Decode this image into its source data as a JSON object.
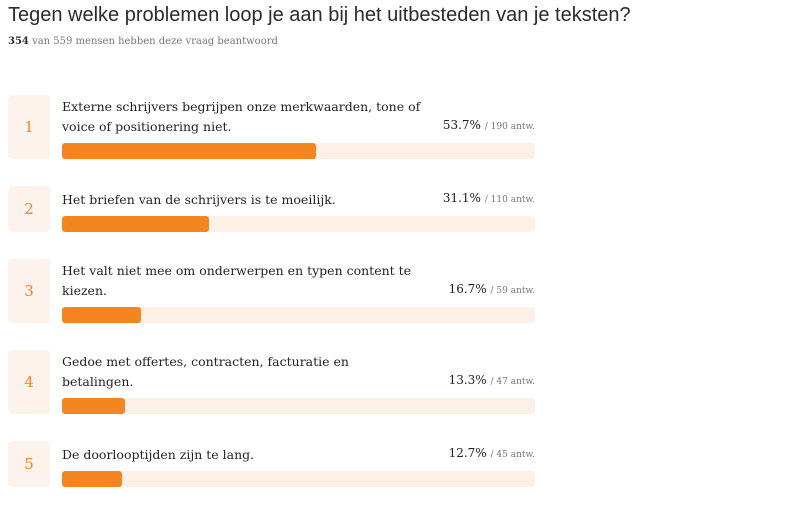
{
  "chart_data": {
    "type": "hbar",
    "title": "Tegen welke problemen loop je aan bij het uitbesteden van je teksten?",
    "respondents": "354",
    "subtitle": "van 559 mensen hebben deze vraag beantwoord",
    "ranks": [
      1,
      2,
      3,
      4,
      5
    ],
    "categories": [
      "Externe schrijvers begrijpen onze merkwaarden, tone of voice of positionering niet.",
      "Het briefen van de schrijvers is te moeilijk.",
      "Het valt niet mee om onderwerpen en typen content te kiezen.",
      "Gedoe met offertes, contracten, facturatie en betalingen.",
      "De doorlooptijden zijn te lang."
    ],
    "values": [
      53.7,
      31.1,
      16.7,
      13.3,
      12.7
    ],
    "value_labels": [
      "53.7%",
      "31.1%",
      "16.7%",
      "13.3%",
      "12.7%"
    ],
    "answer_counts": [
      "/ 190 antw.",
      "/ 110 antw.",
      "/ 59 antw.",
      "/ 47 antw.",
      "/ 45 antw."
    ],
    "xlim": [
      0,
      100
    ],
    "color": "#f5851f",
    "track_color": "#fdf0e6"
  }
}
